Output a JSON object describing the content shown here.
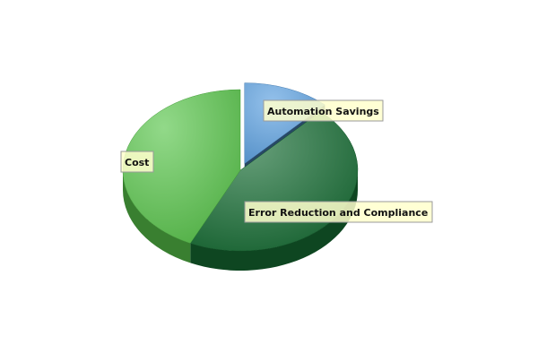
{
  "chart_data": {
    "type": "pie",
    "title": "",
    "slices": [
      {
        "label": "Automation Savings",
        "value": 12,
        "color": "#5a9fe0"
      },
      {
        "label": "Error Reduction and Compliance",
        "value": 45,
        "color": "#156b32"
      },
      {
        "label": "Cost",
        "value": 43,
        "color": "#58c44a"
      }
    ],
    "exploded": "Automation Savings",
    "style": "3d"
  },
  "colors": {
    "label_fill": "#ffffcc",
    "label_border": "#9a9a9a"
  }
}
